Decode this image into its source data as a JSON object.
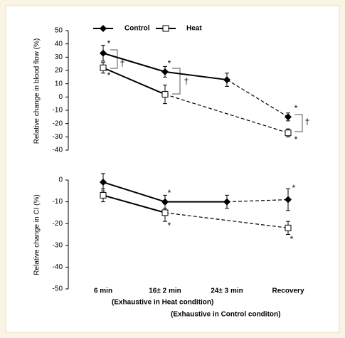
{
  "chart_data": [
    {
      "type": "line",
      "ylabel": "Relative change in blood flow (%)",
      "ylim": [
        -40,
        50
      ],
      "yticks": [
        50,
        40,
        30,
        20,
        10,
        0,
        -10,
        -20,
        -30,
        -40
      ],
      "series": [
        {
          "name": "Control",
          "color": "#000000",
          "marker": "diamond",
          "dashed_from": 2,
          "values": [
            33,
            19,
            13,
            -15
          ],
          "errors": [
            6,
            4,
            5,
            3
          ]
        },
        {
          "name": "Heat",
          "color": "#000000",
          "marker": "square",
          "dashed_from": 1,
          "values": [
            22,
            2,
            null,
            -27
          ],
          "errors": [
            4,
            7,
            null,
            3
          ]
        }
      ],
      "annotations": [
        {
          "text": "*"
        },
        {
          "text": "*"
        },
        {
          "text": "*"
        },
        {
          "text": "*"
        },
        {
          "text": "*"
        },
        {
          "text": "†"
        },
        {
          "text": "†"
        },
        {
          "text": "†"
        }
      ]
    },
    {
      "type": "line",
      "ylabel": "Relative change in CI (%)",
      "ylim": [
        -50,
        0
      ],
      "yticks": [
        0,
        -10,
        -20,
        -30,
        -40,
        -50
      ],
      "categories": [
        "6 min",
        "16± 2 min",
        "24± 3 min",
        "Recovery"
      ],
      "series": [
        {
          "color": "#000000",
          "marker": "diamond",
          "dashed_from": 2,
          "values": [
            -1,
            -10,
            -10,
            -9
          ],
          "errors": [
            4,
            3,
            3,
            5
          ]
        },
        {
          "color": "#000000",
          "marker": "square",
          "dashed_from": 1,
          "values": [
            -7,
            -15,
            null,
            -22
          ],
          "errors": [
            3,
            4,
            null,
            3
          ]
        }
      ],
      "annotations": [
        {
          "text": "*"
        },
        {
          "text": "*"
        },
        {
          "text": "*"
        },
        {
          "text": "*"
        }
      ],
      "notes": [
        "(Exhaustive in Heat condition)",
        "(Exhaustive in Control conditon)"
      ]
    }
  ]
}
